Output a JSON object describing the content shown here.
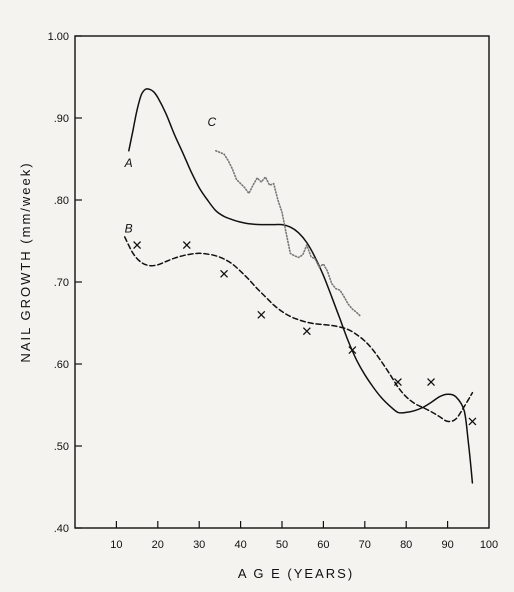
{
  "chart_data": {
    "type": "line",
    "xlabel": "A G E  (YEARS)",
    "ylabel": "NAIL  GROWTH  (mm/week)",
    "xlim": [
      0,
      100
    ],
    "ylim": [
      0.4,
      1.0
    ],
    "x_ticks": [
      {
        "value": 10,
        "label": "10"
      },
      {
        "value": 20,
        "label": "20"
      },
      {
        "value": 30,
        "label": "30"
      },
      {
        "value": 40,
        "label": "40"
      },
      {
        "value": 50,
        "label": "50"
      },
      {
        "value": 60,
        "label": "60"
      },
      {
        "value": 70,
        "label": "70"
      },
      {
        "value": 80,
        "label": "80"
      },
      {
        "value": 90,
        "label": "90"
      },
      {
        "value": 100,
        "label": "100"
      }
    ],
    "y_ticks": [
      {
        "value": 0.4,
        "label": ".40"
      },
      {
        "value": 0.5,
        "label": ".50"
      },
      {
        "value": 0.6,
        "label": ".60"
      },
      {
        "value": 0.7,
        "label": ".70"
      },
      {
        "value": 0.8,
        "label": ".80"
      },
      {
        "value": 0.9,
        "label": ".90"
      },
      {
        "value": 1.0,
        "label": "1.00"
      }
    ],
    "grid": false,
    "series": [
      {
        "name": "A",
        "style": "solid",
        "color": "#111111",
        "label_at": [
          12,
          0.845
        ],
        "x": [
          13,
          14,
          15,
          16,
          17,
          18,
          19,
          20,
          22,
          24,
          26,
          28,
          30,
          32,
          34,
          36,
          38,
          40,
          42,
          45,
          48,
          50,
          52,
          54,
          56,
          58,
          60,
          62,
          64,
          66,
          68,
          70,
          72,
          74,
          76,
          78,
          80,
          82,
          84,
          86,
          88,
          90,
          92,
          94,
          95,
          96
        ],
        "y": [
          0.86,
          0.885,
          0.91,
          0.928,
          0.935,
          0.935,
          0.932,
          0.925,
          0.905,
          0.88,
          0.858,
          0.835,
          0.815,
          0.8,
          0.787,
          0.78,
          0.776,
          0.773,
          0.771,
          0.77,
          0.77,
          0.77,
          0.767,
          0.76,
          0.748,
          0.73,
          0.708,
          0.682,
          0.655,
          0.628,
          0.605,
          0.587,
          0.572,
          0.559,
          0.549,
          0.541,
          0.541,
          0.543,
          0.547,
          0.553,
          0.56,
          0.563,
          0.56,
          0.543,
          0.505,
          0.455
        ]
      },
      {
        "name": "B",
        "style": "dashed",
        "color": "#111111",
        "label_at": [
          12,
          0.765
        ],
        "x": [
          12,
          14,
          16,
          18,
          20,
          22,
          24,
          26,
          28,
          30,
          32,
          34,
          36,
          38,
          40,
          42,
          44,
          46,
          48,
          50,
          52,
          54,
          56,
          58,
          60,
          62,
          64,
          66,
          68,
          70,
          72,
          74,
          76,
          78,
          80,
          82,
          84,
          86,
          88,
          90,
          92,
          94,
          96
        ],
        "y": [
          0.755,
          0.735,
          0.724,
          0.72,
          0.721,
          0.725,
          0.729,
          0.732,
          0.734,
          0.735,
          0.734,
          0.732,
          0.728,
          0.722,
          0.713,
          0.703,
          0.692,
          0.682,
          0.672,
          0.664,
          0.658,
          0.654,
          0.651,
          0.649,
          0.648,
          0.647,
          0.645,
          0.642,
          0.636,
          0.628,
          0.617,
          0.603,
          0.588,
          0.572,
          0.56,
          0.552,
          0.547,
          0.542,
          0.536,
          0.53,
          0.533,
          0.548,
          0.565
        ]
      },
      {
        "name": "C",
        "style": "dotted",
        "color": "#777777",
        "label_at": [
          32,
          0.895
        ],
        "x": [
          34,
          36,
          37,
          38,
          39,
          40,
          41,
          42,
          43,
          44,
          45,
          46,
          47,
          48,
          49,
          50,
          51,
          52,
          53,
          54,
          55,
          56,
          57,
          58,
          59,
          60,
          61,
          62,
          63,
          64,
          65,
          66,
          67,
          68,
          69
        ],
        "y": [
          0.86,
          0.856,
          0.848,
          0.838,
          0.825,
          0.82,
          0.815,
          0.808,
          0.818,
          0.827,
          0.822,
          0.828,
          0.818,
          0.82,
          0.8,
          0.785,
          0.76,
          0.735,
          0.732,
          0.73,
          0.733,
          0.745,
          0.731,
          0.728,
          0.718,
          0.722,
          0.713,
          0.698,
          0.692,
          0.69,
          0.682,
          0.673,
          0.667,
          0.663,
          0.658
        ]
      },
      {
        "name": "",
        "style": "markers",
        "marker": "x",
        "color": "#111111",
        "x": [
          15,
          27,
          36,
          45,
          56,
          67,
          78,
          86,
          96
        ],
        "y": [
          0.745,
          0.745,
          0.71,
          0.66,
          0.64,
          0.617,
          0.578,
          0.578,
          0.53
        ]
      }
    ]
  }
}
